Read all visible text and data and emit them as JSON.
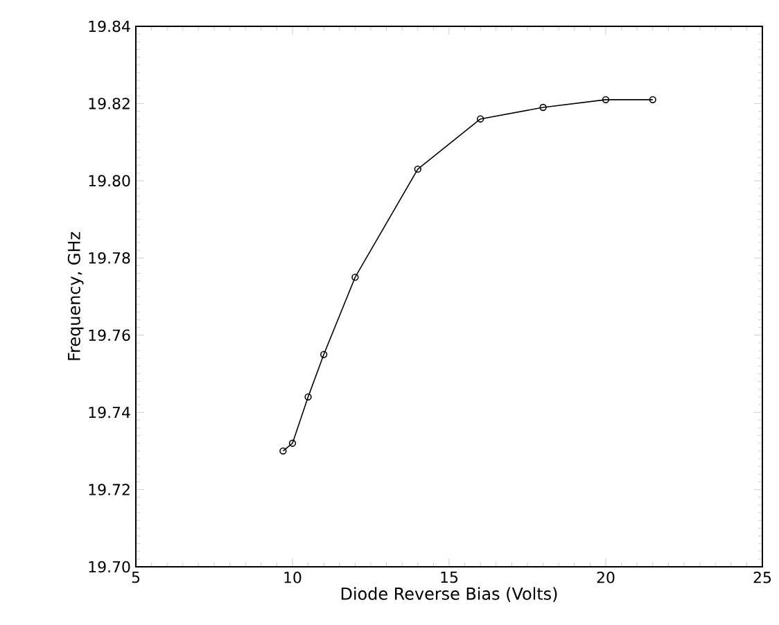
{
  "chart_data": {
    "type": "line",
    "xlabel": "Diode Reverse Bias (Volts)",
    "ylabel": "Frequency,  GHz",
    "x": [
      9.7,
      10.0,
      10.5,
      11,
      12,
      14,
      16,
      18,
      20,
      21.5
    ],
    "series": [
      {
        "color": "#000000",
        "values": [
          19.73,
          19.732,
          19.744,
          19.755,
          19.775,
          19.803,
          19.816,
          19.819,
          19.821,
          19.821
        ]
      }
    ],
    "xlim": [
      5,
      25
    ],
    "ylim": [
      19.7,
      19.84
    ],
    "xticks": [
      5,
      10,
      15,
      20,
      25
    ],
    "yticks": [
      {
        "value": 19.7,
        "label": "19.70"
      },
      {
        "value": 19.72,
        "label": "19.72"
      },
      {
        "value": 19.74,
        "label": "19.74"
      },
      {
        "value": 19.76,
        "label": "19.76"
      },
      {
        "value": 19.78,
        "label": "19.78"
      },
      {
        "value": 19.8,
        "label": "19.80"
      },
      {
        "value": 19.82,
        "label": "19.82"
      },
      {
        "value": 19.84,
        "label": "19.84"
      }
    ],
    "marker": "circle",
    "line_style": "solid",
    "grid": false,
    "legend": false
  }
}
